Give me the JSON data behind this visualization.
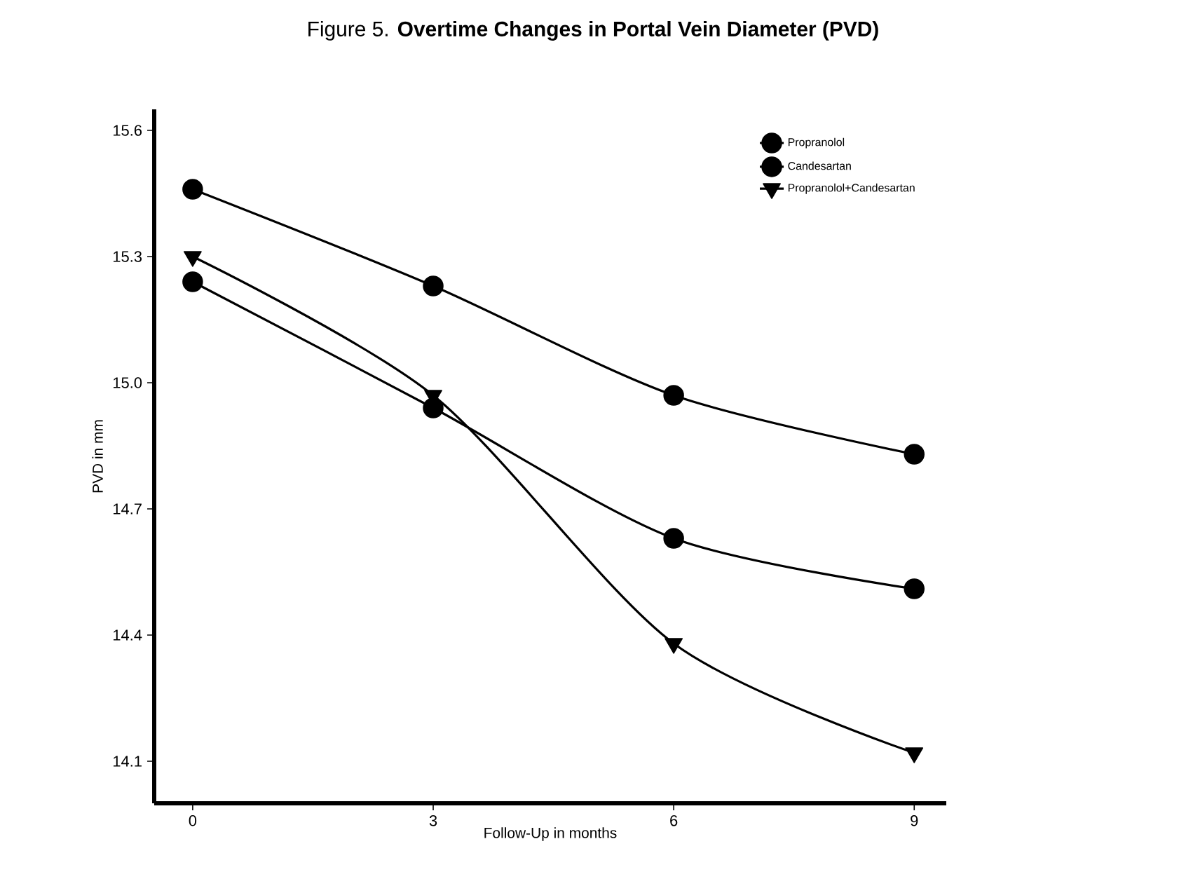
{
  "chart_data": {
    "type": "line",
    "title": "Figure 5. **Overtime Changes in Portal Vein Diameter (PVD)**",
    "xlabel": "Follow-Up in months",
    "ylabel": "PVD in mm",
    "x": [
      0,
      3,
      6,
      9
    ],
    "series": [
      {
        "name": "Propranolol",
        "color": "#000000",
        "marker": "circle",
        "values": [
          15.24,
          14.94,
          14.63,
          14.51
        ]
      },
      {
        "name": "Candesartan",
        "color": "#000000",
        "marker": "circle",
        "values": [
          15.46,
          15.23,
          14.97,
          14.83
        ]
      },
      {
        "name": "Propranolol+Candesartan",
        "color": "#000000",
        "marker": "triangle",
        "values": [
          15.3,
          14.97,
          14.38,
          14.12
        ]
      }
    ],
    "xlim": [
      -0.48,
      9.4
    ],
    "ylim": [
      14.0,
      15.65
    ],
    "xticks": [
      0,
      3,
      6,
      9
    ],
    "yticks": [
      {
        "value": 14.1,
        "label": "14.1"
      },
      {
        "value": 14.4,
        "label": "14.4"
      },
      {
        "value": 14.7,
        "label": "14.7"
      },
      {
        "value": 15.0,
        "label": "15.0"
      },
      {
        "value": 15.3,
        "label": "15.3"
      },
      {
        "value": 15.6,
        "label": "15.6"
      }
    ],
    "legend": "top right",
    "grid": false
  }
}
